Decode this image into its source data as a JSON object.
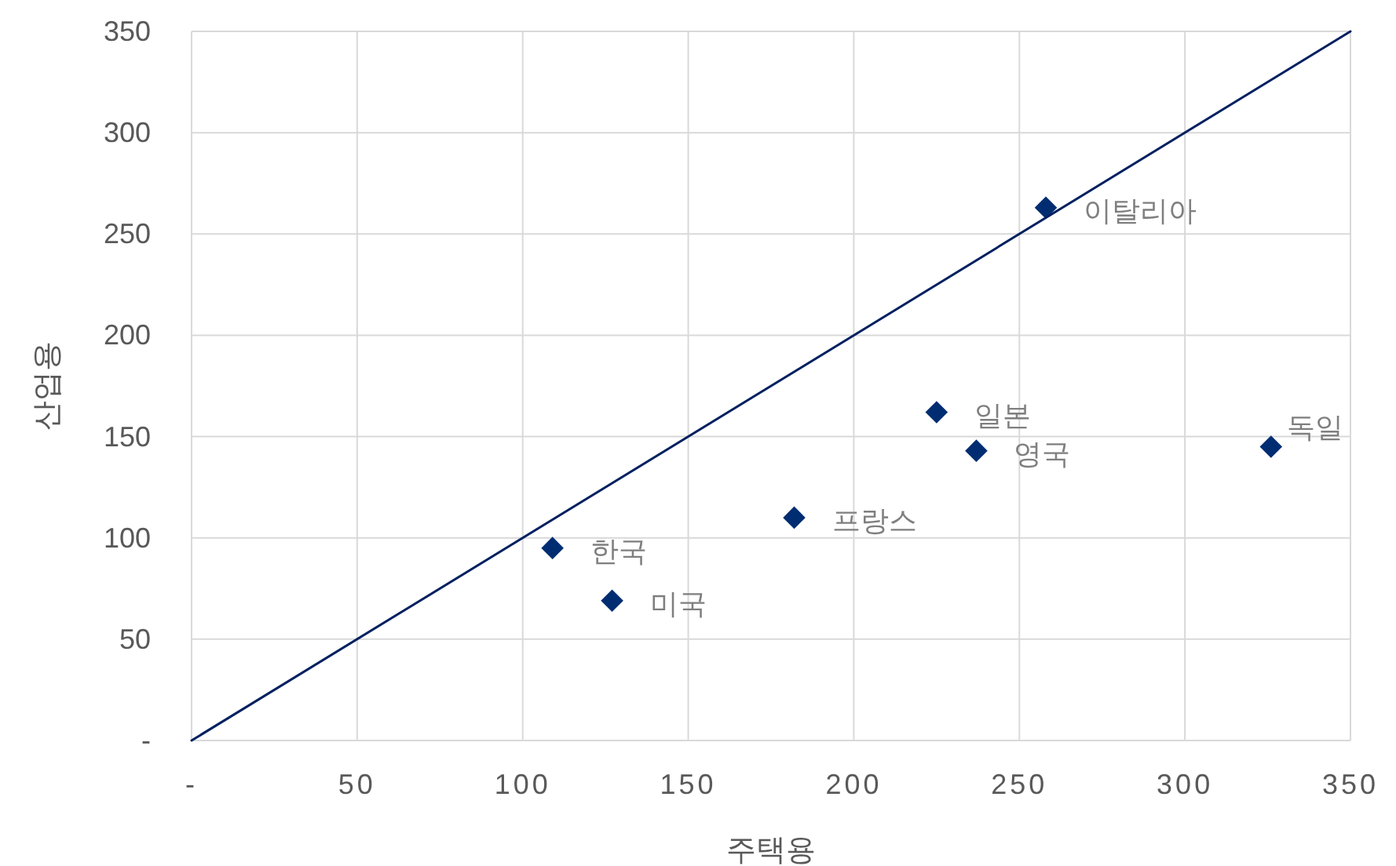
{
  "chart_data": {
    "type": "scatter",
    "xlabel": "주택용",
    "ylabel": "산업용",
    "xlim": [
      0,
      350
    ],
    "ylim": [
      0,
      350
    ],
    "xticks": [
      {
        "value": 0,
        "label": "-"
      },
      50,
      100,
      150,
      200,
      250,
      300,
      350
    ],
    "yticks": [
      {
        "value": 0,
        "label": "-"
      },
      50,
      100,
      150,
      200,
      250,
      300,
      350
    ],
    "grid": true,
    "marker": "diamond",
    "series": [
      {
        "color": "#002d72",
        "x": [
          258,
          225,
          237,
          326,
          182,
          109,
          127
        ],
        "values": [
          263,
          162,
          143,
          145,
          110,
          95,
          69
        ]
      },
      {
        "type": "line",
        "color": "#002060",
        "marker": "none",
        "x": [
          0,
          350
        ],
        "values": [
          0,
          350
        ]
      }
    ],
    "annotations": [
      {
        "text": "이탈리아",
        "x": 258,
        "y": 263
      },
      {
        "text": "일본",
        "x": 225,
        "y": 162
      },
      {
        "text": "영국",
        "x": 237,
        "y": 143
      },
      {
        "text": "독일",
        "x": 326,
        "y": 145
      },
      {
        "text": "프랑스",
        "x": 182,
        "y": 110
      },
      {
        "text": "한국",
        "x": 109,
        "y": 95
      },
      {
        "text": "미국",
        "x": 127,
        "y": 69
      }
    ]
  }
}
